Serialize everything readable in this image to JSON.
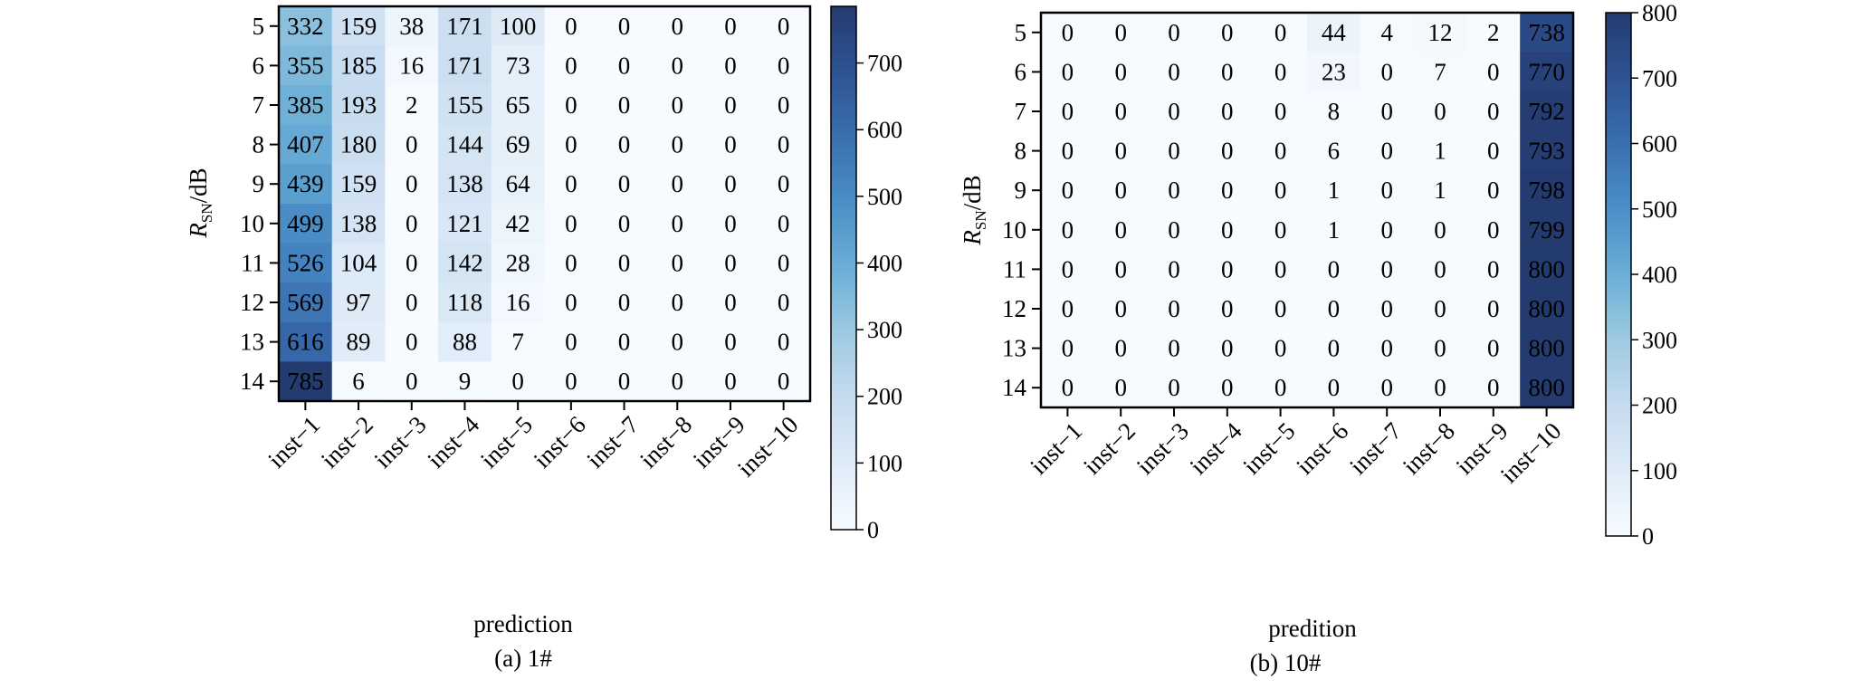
{
  "chart_data": [
    {
      "type": "heatmap",
      "caption": "(a) 1#",
      "xlabel": "prediction",
      "ylabel_main": "R",
      "ylabel_sub": "SN",
      "ylabel_unit": "/dB",
      "x_categories": [
        "inst−1",
        "inst−2",
        "inst−3",
        "inst−4",
        "inst−5",
        "inst−6",
        "inst−7",
        "inst−8",
        "inst−9",
        "inst−10"
      ],
      "y_categories": [
        "5",
        "6",
        "7",
        "8",
        "9",
        "10",
        "11",
        "12",
        "13",
        "14"
      ],
      "values": [
        [
          332,
          159,
          38,
          171,
          100,
          0,
          0,
          0,
          0,
          0
        ],
        [
          355,
          185,
          16,
          171,
          73,
          0,
          0,
          0,
          0,
          0
        ],
        [
          385,
          193,
          2,
          155,
          65,
          0,
          0,
          0,
          0,
          0
        ],
        [
          407,
          180,
          0,
          144,
          69,
          0,
          0,
          0,
          0,
          0
        ],
        [
          439,
          159,
          0,
          138,
          64,
          0,
          0,
          0,
          0,
          0
        ],
        [
          499,
          138,
          0,
          121,
          42,
          0,
          0,
          0,
          0,
          0
        ],
        [
          526,
          104,
          0,
          142,
          28,
          0,
          0,
          0,
          0,
          0
        ],
        [
          569,
          97,
          0,
          118,
          16,
          0,
          0,
          0,
          0,
          0
        ],
        [
          616,
          89,
          0,
          88,
          7,
          0,
          0,
          0,
          0,
          0
        ],
        [
          785,
          6,
          0,
          9,
          0,
          0,
          0,
          0,
          0,
          0
        ]
      ],
      "colorbar": {
        "min": 0,
        "max": 785,
        "ticks": [
          0,
          100,
          200,
          300,
          400,
          500,
          600,
          700
        ]
      },
      "colormap": "Blues"
    },
    {
      "type": "heatmap",
      "caption": "(b) 10#",
      "xlabel": "predition",
      "ylabel_main": "R",
      "ylabel_sub": "SN",
      "ylabel_unit": "/dB",
      "x_categories": [
        "inst−1",
        "inst−2",
        "inst−3",
        "inst−4",
        "inst−5",
        "inst−6",
        "inst−7",
        "inst−8",
        "inst−9",
        "inst−10"
      ],
      "y_categories": [
        "5",
        "6",
        "7",
        "8",
        "9",
        "10",
        "11",
        "12",
        "13",
        "14"
      ],
      "values": [
        [
          0,
          0,
          0,
          0,
          0,
          44,
          4,
          12,
          2,
          738
        ],
        [
          0,
          0,
          0,
          0,
          0,
          23,
          0,
          7,
          0,
          770
        ],
        [
          0,
          0,
          0,
          0,
          0,
          8,
          0,
          0,
          0,
          792
        ],
        [
          0,
          0,
          0,
          0,
          0,
          6,
          0,
          1,
          0,
          793
        ],
        [
          0,
          0,
          0,
          0,
          0,
          1,
          0,
          1,
          0,
          798
        ],
        [
          0,
          0,
          0,
          0,
          0,
          1,
          0,
          0,
          0,
          799
        ],
        [
          0,
          0,
          0,
          0,
          0,
          0,
          0,
          0,
          0,
          800
        ],
        [
          0,
          0,
          0,
          0,
          0,
          0,
          0,
          0,
          0,
          800
        ],
        [
          0,
          0,
          0,
          0,
          0,
          0,
          0,
          0,
          0,
          800
        ],
        [
          0,
          0,
          0,
          0,
          0,
          0,
          0,
          0,
          0,
          800
        ]
      ],
      "colorbar": {
        "min": 0,
        "max": 800,
        "ticks": [
          0,
          100,
          200,
          300,
          400,
          500,
          600,
          700,
          800
        ]
      },
      "colormap": "Blues"
    }
  ]
}
